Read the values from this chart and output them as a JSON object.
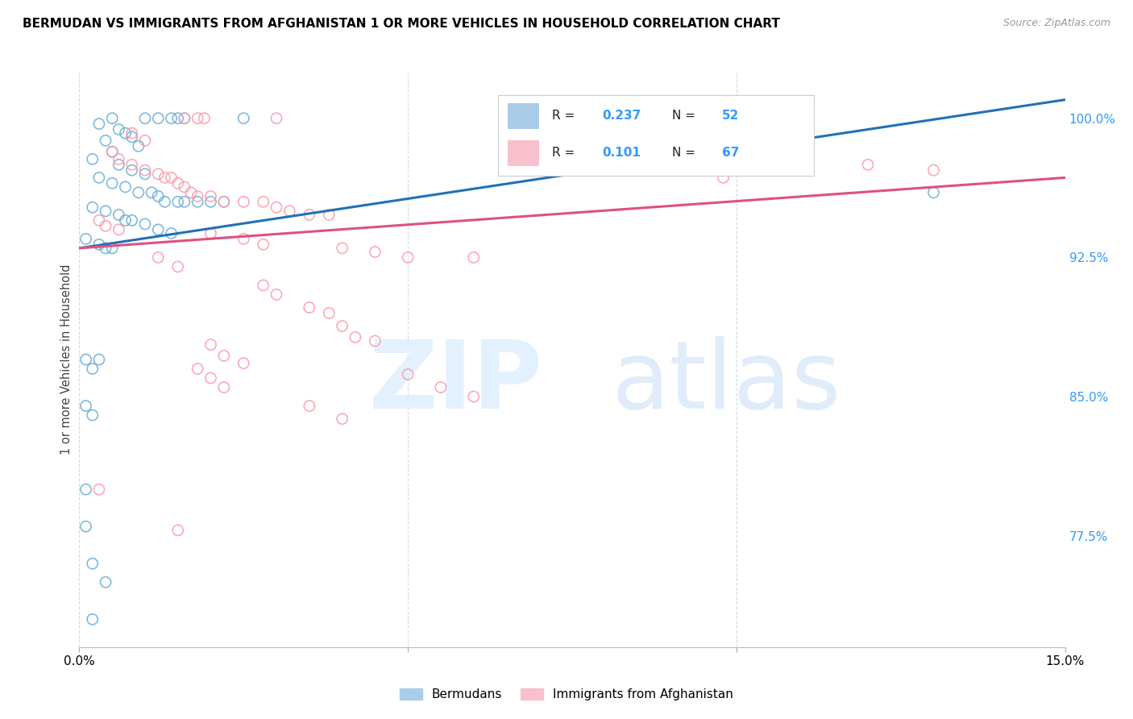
{
  "title": "BERMUDAN VS IMMIGRANTS FROM AFGHANISTAN 1 OR MORE VEHICLES IN HOUSEHOLD CORRELATION CHART",
  "source": "Source: ZipAtlas.com",
  "ylabel": "1 or more Vehicles in Household",
  "ytick_labels": [
    "77.5%",
    "85.0%",
    "92.5%",
    "100.0%"
  ],
  "ytick_values": [
    0.775,
    0.85,
    0.925,
    1.0
  ],
  "xlim": [
    0.0,
    0.15
  ],
  "ylim": [
    0.715,
    1.025
  ],
  "blue_color": "#6baed6",
  "pink_color": "#fc9bad",
  "blue_line_color": "#2171b5",
  "pink_line_color": "#e05080",
  "blue_scatter": [
    [
      0.005,
      1.0
    ],
    [
      0.01,
      1.0
    ],
    [
      0.012,
      1.0
    ],
    [
      0.014,
      1.0
    ],
    [
      0.015,
      1.0
    ],
    [
      0.016,
      1.0
    ],
    [
      0.025,
      1.0
    ],
    [
      0.003,
      0.997
    ],
    [
      0.006,
      0.994
    ],
    [
      0.007,
      0.992
    ],
    [
      0.008,
      0.99
    ],
    [
      0.004,
      0.988
    ],
    [
      0.009,
      0.985
    ],
    [
      0.005,
      0.982
    ],
    [
      0.002,
      0.978
    ],
    [
      0.006,
      0.975
    ],
    [
      0.008,
      0.972
    ],
    [
      0.01,
      0.97
    ],
    [
      0.003,
      0.968
    ],
    [
      0.005,
      0.965
    ],
    [
      0.007,
      0.963
    ],
    [
      0.009,
      0.96
    ],
    [
      0.011,
      0.96
    ],
    [
      0.012,
      0.958
    ],
    [
      0.013,
      0.955
    ],
    [
      0.015,
      0.955
    ],
    [
      0.016,
      0.955
    ],
    [
      0.018,
      0.955
    ],
    [
      0.02,
      0.955
    ],
    [
      0.022,
      0.955
    ],
    [
      0.002,
      0.952
    ],
    [
      0.004,
      0.95
    ],
    [
      0.006,
      0.948
    ],
    [
      0.007,
      0.945
    ],
    [
      0.008,
      0.945
    ],
    [
      0.01,
      0.943
    ],
    [
      0.012,
      0.94
    ],
    [
      0.014,
      0.938
    ],
    [
      0.001,
      0.935
    ],
    [
      0.003,
      0.932
    ],
    [
      0.004,
      0.93
    ],
    [
      0.005,
      0.93
    ],
    [
      0.001,
      0.87
    ],
    [
      0.003,
      0.87
    ],
    [
      0.002,
      0.865
    ],
    [
      0.001,
      0.845
    ],
    [
      0.002,
      0.84
    ],
    [
      0.001,
      0.8
    ],
    [
      0.001,
      0.78
    ],
    [
      0.002,
      0.76
    ],
    [
      0.004,
      0.75
    ],
    [
      0.002,
      0.73
    ],
    [
      0.13,
      0.96
    ]
  ],
  "pink_scatter": [
    [
      0.016,
      1.0
    ],
    [
      0.018,
      1.0
    ],
    [
      0.019,
      1.0
    ],
    [
      0.03,
      1.0
    ],
    [
      0.09,
      1.0
    ],
    [
      0.1,
      1.0
    ],
    [
      0.008,
      0.992
    ],
    [
      0.01,
      0.988
    ],
    [
      0.005,
      0.982
    ],
    [
      0.006,
      0.978
    ],
    [
      0.008,
      0.975
    ],
    [
      0.01,
      0.972
    ],
    [
      0.012,
      0.97
    ],
    [
      0.013,
      0.968
    ],
    [
      0.014,
      0.968
    ],
    [
      0.015,
      0.965
    ],
    [
      0.016,
      0.963
    ],
    [
      0.017,
      0.96
    ],
    [
      0.018,
      0.958
    ],
    [
      0.02,
      0.958
    ],
    [
      0.022,
      0.955
    ],
    [
      0.025,
      0.955
    ],
    [
      0.028,
      0.955
    ],
    [
      0.03,
      0.952
    ],
    [
      0.032,
      0.95
    ],
    [
      0.035,
      0.948
    ],
    [
      0.038,
      0.948
    ],
    [
      0.003,
      0.945
    ],
    [
      0.004,
      0.942
    ],
    [
      0.006,
      0.94
    ],
    [
      0.02,
      0.938
    ],
    [
      0.025,
      0.935
    ],
    [
      0.028,
      0.932
    ],
    [
      0.04,
      0.93
    ],
    [
      0.045,
      0.928
    ],
    [
      0.05,
      0.925
    ],
    [
      0.06,
      0.925
    ],
    [
      0.012,
      0.925
    ],
    [
      0.015,
      0.92
    ],
    [
      0.028,
      0.91
    ],
    [
      0.03,
      0.905
    ],
    [
      0.035,
      0.898
    ],
    [
      0.038,
      0.895
    ],
    [
      0.04,
      0.888
    ],
    [
      0.042,
      0.882
    ],
    [
      0.045,
      0.88
    ],
    [
      0.02,
      0.878
    ],
    [
      0.022,
      0.872
    ],
    [
      0.025,
      0.868
    ],
    [
      0.018,
      0.865
    ],
    [
      0.02,
      0.86
    ],
    [
      0.022,
      0.855
    ],
    [
      0.05,
      0.862
    ],
    [
      0.055,
      0.855
    ],
    [
      0.06,
      0.85
    ],
    [
      0.035,
      0.845
    ],
    [
      0.04,
      0.838
    ],
    [
      0.003,
      0.8
    ],
    [
      0.015,
      0.778
    ],
    [
      0.1,
      0.978
    ],
    [
      0.12,
      0.975
    ],
    [
      0.098,
      0.968
    ],
    [
      0.13,
      0.972
    ]
  ],
  "blue_line_x": [
    0.0,
    0.15
  ],
  "blue_line_y": [
    0.93,
    1.01
  ],
  "pink_line_x": [
    0.0,
    0.15
  ],
  "pink_line_y": [
    0.93,
    0.968
  ]
}
